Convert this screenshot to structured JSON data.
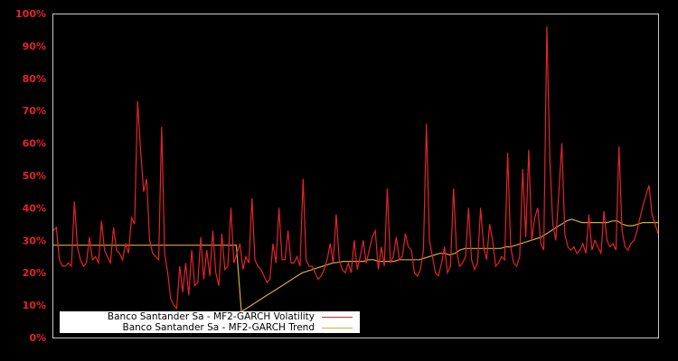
{
  "chart_data": {
    "type": "line",
    "title": "",
    "xlabel": "",
    "ylabel": "",
    "ylim": [
      0,
      100
    ],
    "yticks": [
      "0%",
      "10%",
      "20%",
      "30%",
      "40%",
      "50%",
      "60%",
      "70%",
      "80%",
      "90%",
      "100%"
    ],
    "grid": false,
    "legend_position": "lower-left",
    "colors": {
      "volatility": "#e3242b",
      "trend": "#d4aa3c",
      "axis": "#c8c8c8",
      "tick_text": "#e3242b",
      "background": "#000000"
    },
    "x_points": 120,
    "series": [
      {
        "name": "Banco Santander Sa - MF2-GARCH Volatility",
        "values": [
          33,
          34,
          24,
          22,
          22,
          23,
          22,
          42,
          28,
          24,
          22,
          23,
          31,
          24,
          25,
          23,
          36,
          27,
          25,
          23,
          34,
          27,
          26,
          24,
          29,
          26,
          37,
          35,
          73,
          58,
          45,
          49,
          30,
          26,
          25,
          24,
          65,
          26,
          20,
          12,
          10,
          9,
          22,
          14,
          23,
          13,
          27,
          16,
          17,
          31,
          18,
          27,
          19,
          33,
          20,
          16,
          32,
          21,
          22,
          40,
          23,
          26,
          29,
          21,
          25,
          23,
          43,
          24,
          22,
          21,
          19,
          17,
          18,
          29,
          23,
          40,
          24,
          24,
          33,
          23,
          23,
          25,
          22,
          49,
          24,
          22,
          22,
          20,
          18,
          19,
          21,
          24,
          29,
          23,
          38,
          24,
          21,
          20,
          23,
          20,
          30,
          21,
          25,
          30,
          23,
          27,
          31,
          33,
          21,
          28,
          22,
          46,
          23,
          25,
          31,
          24,
          25,
          32,
          28,
          27
        ],
        "values_note": "approximate first half; see values_b for second half"
      },
      {
        "name": "Banco Santander Sa - MF2-GARCH Trend",
        "values": [
          28.5,
          28.5,
          28.5,
          28.5,
          28.5,
          28.5,
          28.5,
          28.5,
          28.5,
          28.5,
          28.5,
          28.5,
          28.5,
          28.5,
          28.5,
          28.5,
          28.5,
          28.5,
          28.5,
          28.5,
          28.5,
          28.5,
          28.5,
          28.5,
          28.5,
          28.5,
          28.5,
          28.5,
          28.5,
          28.5,
          28.5,
          28.5,
          28.5,
          28.5,
          28.5,
          28.5,
          28.5,
          8,
          9,
          10,
          11,
          12,
          13,
          14,
          15,
          16,
          17,
          18,
          19,
          20,
          20.5,
          21,
          21.5,
          22,
          22.5,
          23,
          23.2,
          23.5,
          23.5,
          23.5,
          23.5,
          23.5,
          24,
          24,
          23.5,
          23.5,
          23.5,
          23.5,
          24,
          24,
          24,
          24,
          24,
          24.5,
          25,
          25.5,
          26,
          26,
          25.5,
          26,
          27,
          27.5,
          27.5,
          27.5,
          27.5,
          27.5,
          27.5,
          27.5,
          27.5,
          28,
          28,
          28.5,
          29,
          29.5,
          30,
          30.5,
          31,
          32,
          33,
          34,
          35,
          36,
          36.5,
          36,
          35.5,
          35.5,
          35.5,
          35.5,
          35.5,
          35.5,
          36,
          36,
          35,
          34.5,
          34.5,
          35,
          35.5,
          35.5,
          35.5,
          35.5
        ]
      }
    ],
    "values_b": [
      20,
      19,
      21,
      27,
      66,
      30,
      25,
      20,
      19,
      23,
      28,
      20,
      22,
      46,
      27,
      22,
      23,
      25,
      40,
      24,
      21,
      23,
      40,
      28,
      24,
      35,
      30,
      22,
      23,
      25,
      24,
      57,
      28,
      23,
      22,
      25,
      52,
      31,
      58,
      30,
      37,
      40,
      29,
      27,
      96,
      55,
      35,
      30,
      45,
      60,
      32,
      28,
      27,
      28,
      26,
      27,
      29,
      26,
      38,
      27,
      30,
      28,
      26,
      39,
      30,
      28,
      29,
      27,
      59,
      33,
      28,
      27,
      29,
      30,
      33,
      37,
      41,
      44,
      47,
      38,
      35,
      32
    ]
  },
  "legend": {
    "items": [
      {
        "label": "Banco Santander Sa - MF2-GARCH Volatility",
        "color": "#e3242b"
      },
      {
        "label": "Banco Santander Sa - MF2-GARCH Trend",
        "color": "#d4aa3c"
      }
    ]
  }
}
